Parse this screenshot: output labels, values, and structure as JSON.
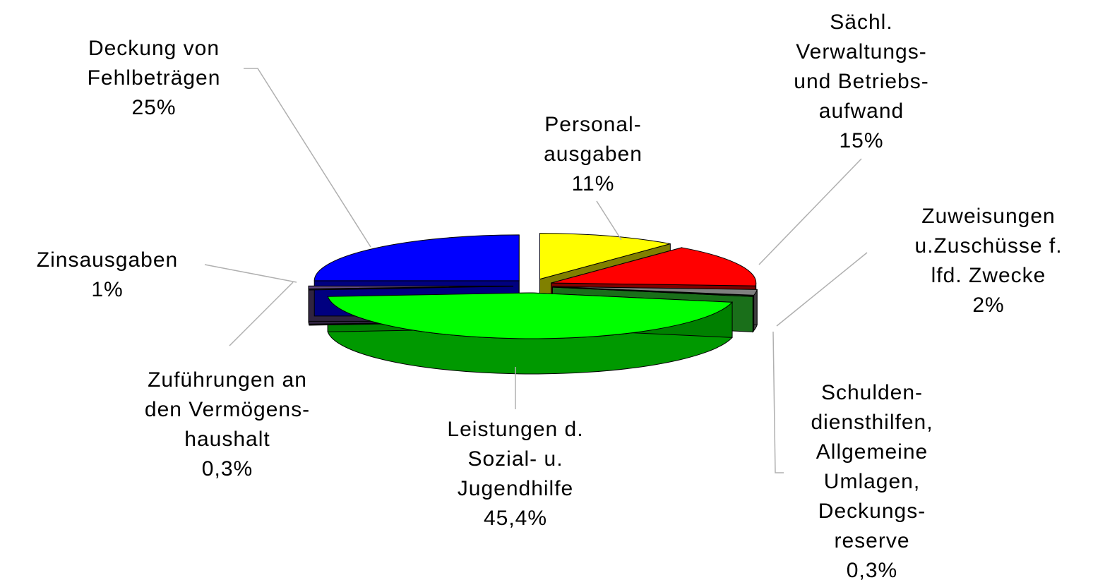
{
  "chart_data": {
    "type": "pie3d",
    "categories": [
      "Personal-\nausgaben",
      "Sächl.\nVerwaltungs-\nund Betriebs-\naufwand",
      "Zuweisungen\nu.Zuschüsse f.\nlfd. Zwecke",
      "Schulden-\ndiensthilfen,\nAllgemeine\nUmlagen,\nDeckungs-\nreserve",
      "Leistungen d.\nSozial- u.\nJugendhilfe",
      "Zuführungen an\nden Vermögens-\nhaushalt",
      "Zinsausgaben",
      "Deckung von\nFehlbeträgen"
    ],
    "values": [
      11,
      15,
      2,
      0.3,
      45.4,
      0.3,
      1,
      25
    ],
    "value_labels": [
      "11%",
      "15%",
      "2%",
      "0,3%",
      "45,4%",
      "0,3%",
      "1%",
      "25%"
    ],
    "colors": [
      "#ffff00",
      "#ff0000",
      "#808080",
      "#33dd33",
      "#00ff00",
      "#202060",
      "#604880",
      "#0000ff"
    ]
  }
}
